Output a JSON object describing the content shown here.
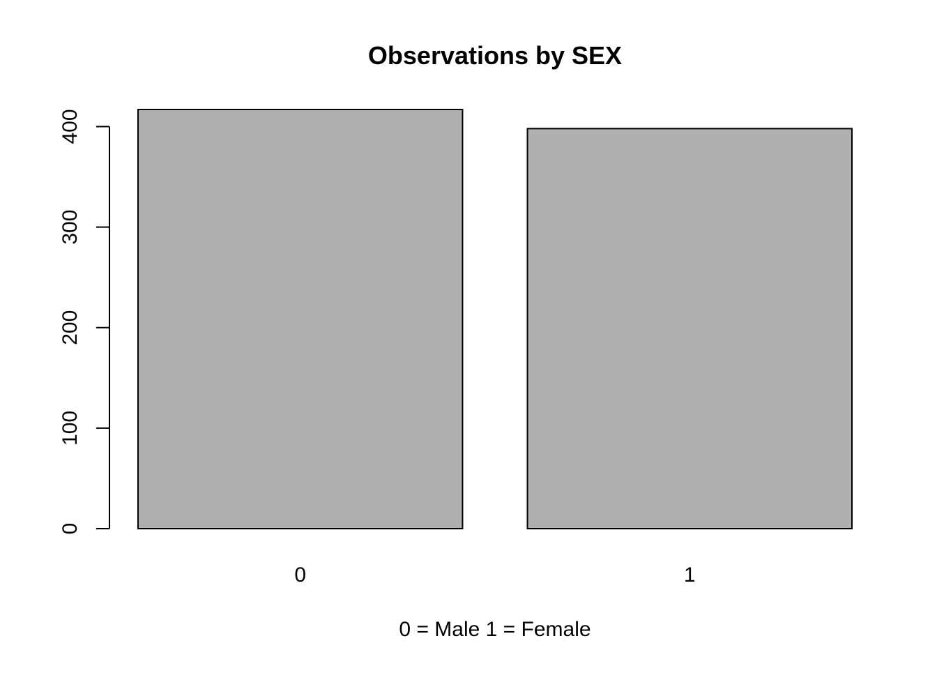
{
  "chart_data": {
    "type": "bar",
    "title": "Observations by SEX",
    "xlabel": "0 = Male 1 = Female",
    "ylabel": "",
    "categories": [
      "0",
      "1"
    ],
    "values": [
      417,
      398
    ],
    "ylim": [
      0,
      417
    ],
    "yticks": [
      0,
      100,
      200,
      300,
      400
    ],
    "ytick_labels": [
      "0",
      "100",
      "200",
      "300",
      "400"
    ],
    "bar_fill": "#b0b0b0",
    "bar_stroke": "#000000",
    "grid": false,
    "legend": "none"
  }
}
